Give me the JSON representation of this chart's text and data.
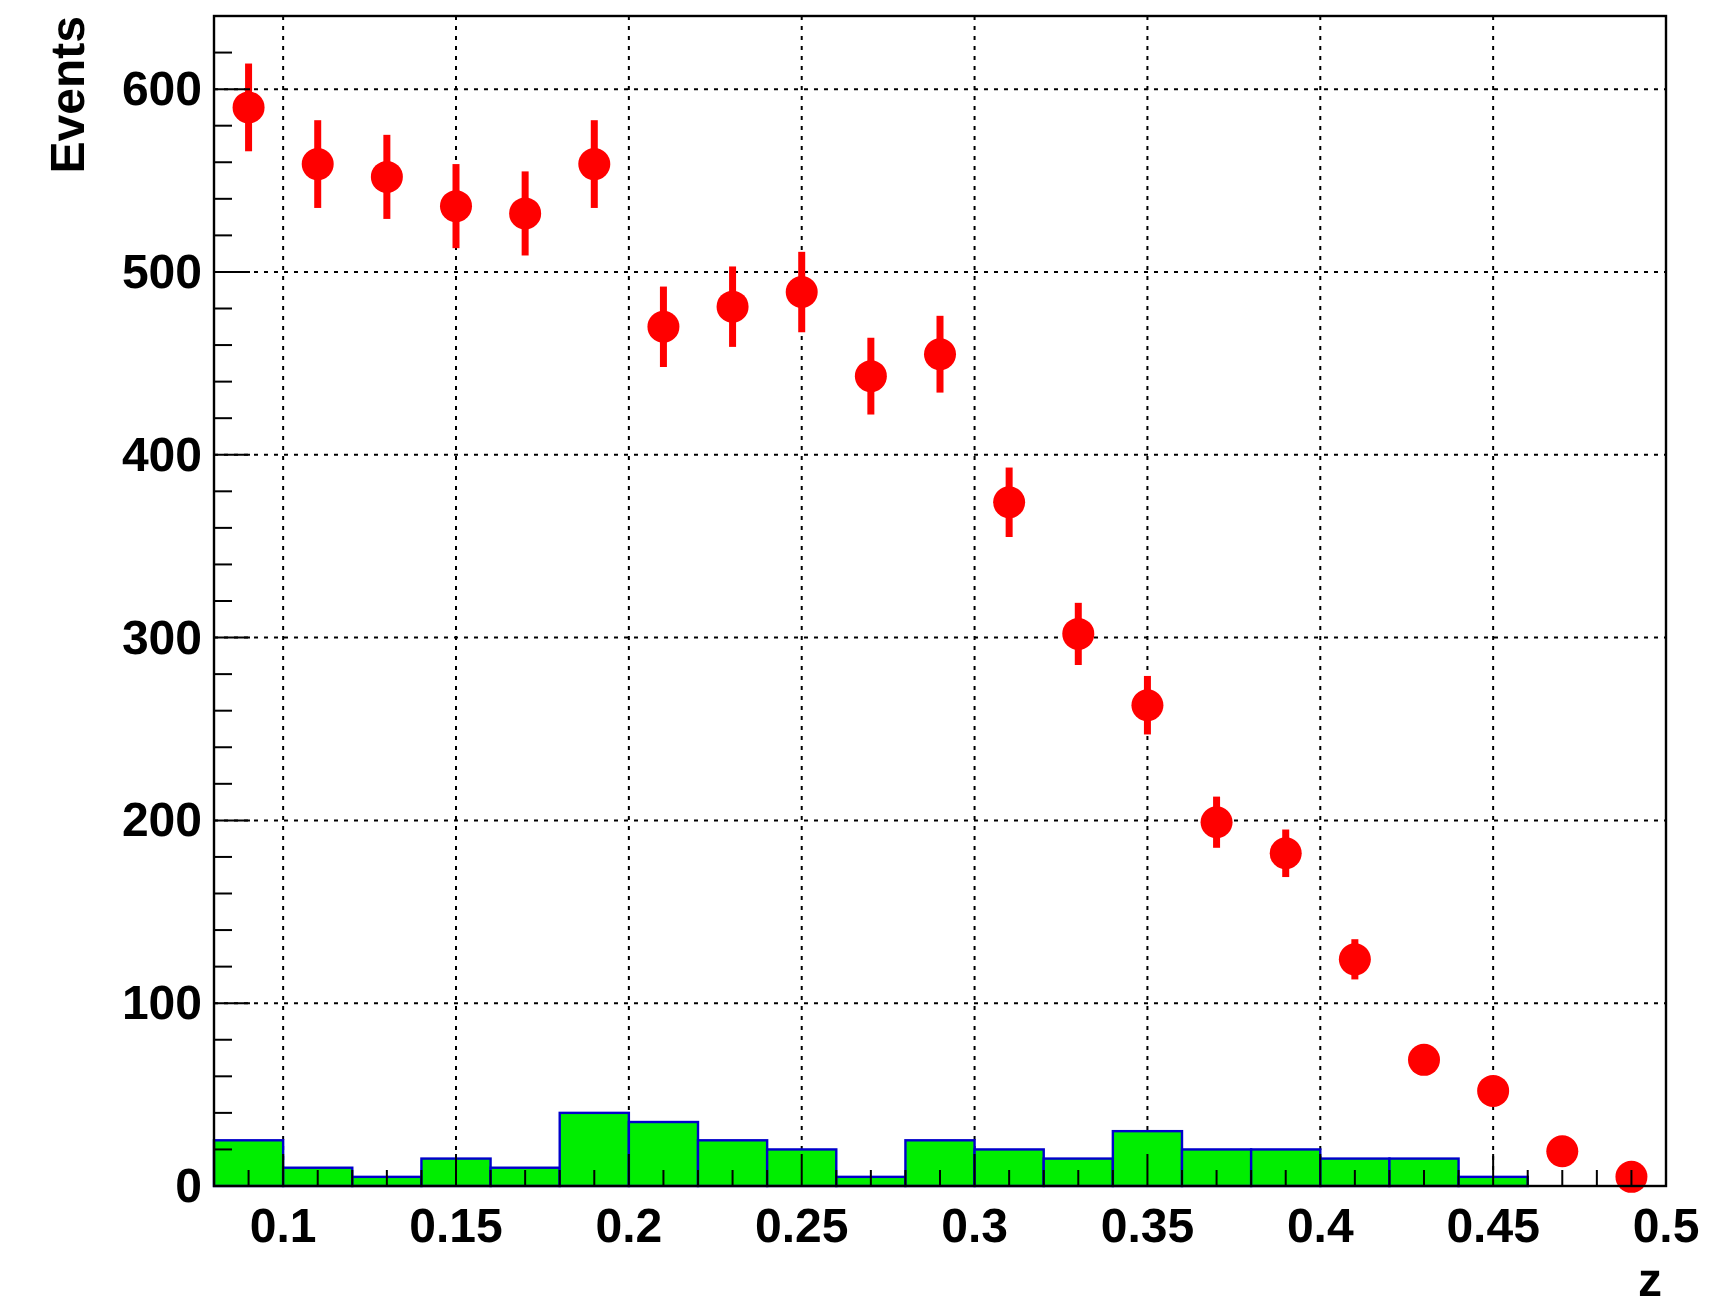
{
  "chart_data": {
    "type": "scatter",
    "xlabel": "z",
    "ylabel": "Events",
    "xlim": [
      0.08,
      0.5
    ],
    "ylim": [
      0,
      640
    ],
    "xticks": [
      {
        "value": 0.09,
        "label": null
      },
      0.1,
      {
        "value": 0.11,
        "label": null
      },
      {
        "value": 0.12,
        "label": null
      },
      {
        "value": 0.13,
        "label": null
      },
      {
        "value": 0.14,
        "label": null
      },
      0.15,
      {
        "value": 0.16,
        "label": null
      },
      {
        "value": 0.17,
        "label": null
      },
      {
        "value": 0.18,
        "label": null
      },
      {
        "value": 0.19,
        "label": null
      },
      0.2,
      {
        "value": 0.21,
        "label": null
      },
      {
        "value": 0.22,
        "label": null
      },
      {
        "value": 0.23,
        "label": null
      },
      {
        "value": 0.24,
        "label": null
      },
      0.25,
      {
        "value": 0.26,
        "label": null
      },
      {
        "value": 0.27,
        "label": null
      },
      {
        "value": 0.28,
        "label": null
      },
      {
        "value": 0.29,
        "label": null
      },
      0.3,
      {
        "value": 0.31,
        "label": null
      },
      {
        "value": 0.32,
        "label": null
      },
      {
        "value": 0.33,
        "label": null
      },
      {
        "value": 0.34,
        "label": null
      },
      0.35,
      {
        "value": 0.36,
        "label": null
      },
      {
        "value": 0.37,
        "label": null
      },
      {
        "value": 0.38,
        "label": null
      },
      {
        "value": 0.39,
        "label": null
      },
      0.4,
      {
        "value": 0.41,
        "label": null
      },
      {
        "value": 0.42,
        "label": null
      },
      {
        "value": 0.43,
        "label": null
      },
      {
        "value": 0.44,
        "label": null
      },
      0.45,
      {
        "value": 0.46,
        "label": null
      },
      {
        "value": 0.47,
        "label": null
      },
      {
        "value": 0.48,
        "label": null
      },
      {
        "value": 0.49,
        "label": null
      },
      0.5
    ],
    "yticks": [
      0,
      {
        "value": 20,
        "label": null
      },
      {
        "value": 40,
        "label": null
      },
      {
        "value": 60,
        "label": null
      },
      {
        "value": 80,
        "label": null
      },
      100,
      {
        "value": 120,
        "label": null
      },
      {
        "value": 140,
        "label": null
      },
      {
        "value": 160,
        "label": null
      },
      {
        "value": 180,
        "label": null
      },
      200,
      {
        "value": 220,
        "label": null
      },
      {
        "value": 240,
        "label": null
      },
      {
        "value": 260,
        "label": null
      },
      {
        "value": 280,
        "label": null
      },
      300,
      {
        "value": 320,
        "label": null
      },
      {
        "value": 340,
        "label": null
      },
      {
        "value": 360,
        "label": null
      },
      {
        "value": 380,
        "label": null
      },
      400,
      {
        "value": 420,
        "label": null
      },
      {
        "value": 440,
        "label": null
      },
      {
        "value": 460,
        "label": null
      },
      {
        "value": 480,
        "label": null
      },
      500,
      {
        "value": 520,
        "label": null
      },
      {
        "value": 540,
        "label": null
      },
      {
        "value": 560,
        "label": null
      },
      {
        "value": 580,
        "label": null
      },
      600,
      {
        "value": 620,
        "label": null
      }
    ],
    "grid": true,
    "marker": "circle",
    "series": [
      {
        "type": "histogram",
        "color": "#00ee00",
        "bins": [
          0.08,
          0.1,
          0.12,
          0.14,
          0.16,
          0.18,
          0.2,
          0.22,
          0.24,
          0.26,
          0.28,
          0.3,
          0.32,
          0.34,
          0.36,
          0.38,
          0.4,
          0.42,
          0.44,
          0.46,
          0.48,
          0.5
        ],
        "values": [
          25,
          10,
          5,
          15,
          10,
          40,
          35,
          25,
          20,
          5,
          25,
          20,
          15,
          30,
          20,
          20,
          15,
          15,
          5,
          0,
          0
        ]
      },
      {
        "color": "#ff0000",
        "x": [
          0.09,
          0.11,
          0.13,
          0.15,
          0.17,
          0.19,
          0.21,
          0.23,
          0.25,
          0.27,
          0.29,
          0.31,
          0.33,
          0.35,
          0.37,
          0.39,
          0.41,
          0.43,
          0.45,
          0.47,
          0.49
        ],
        "values": [
          590,
          559,
          552,
          536,
          532,
          559,
          470,
          481,
          489,
          443,
          455,
          374,
          302,
          263,
          199,
          182,
          124,
          69,
          52,
          19,
          5
        ],
        "errors": [
          24,
          24,
          23,
          23,
          23,
          24,
          22,
          22,
          22,
          21,
          21,
          19,
          17,
          16,
          14,
          13,
          11,
          8,
          7,
          4,
          2
        ]
      }
    ]
  }
}
